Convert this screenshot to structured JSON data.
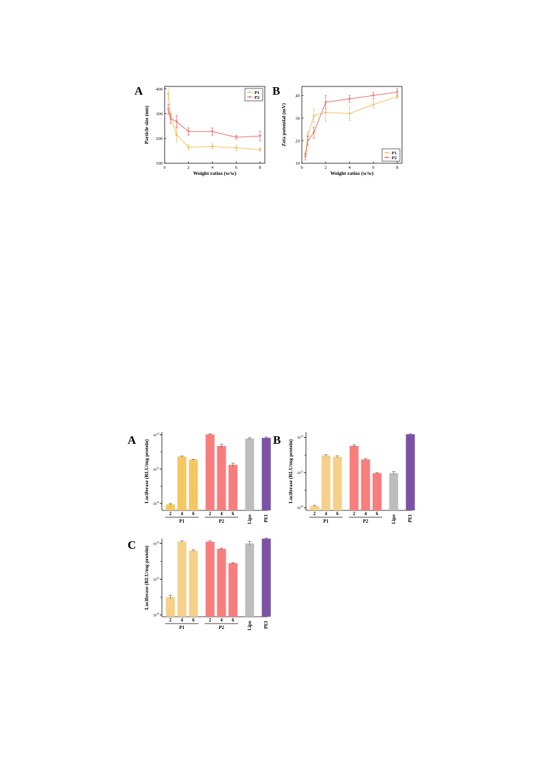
{
  "chart_data": [
    {
      "panel": "A",
      "type": "line",
      "xlabel": "Weight ratios (w/w)",
      "ylabel": "Particle size (nm)",
      "xlim": [
        0,
        8.4
      ],
      "ylim": [
        100,
        410
      ],
      "xticks": [
        0,
        2,
        4,
        6,
        8
      ],
      "yticks": [
        100,
        200,
        300,
        400
      ],
      "legend": "top-right",
      "series": [
        {
          "name": "P1",
          "color": "#f0c060",
          "marker": "circle",
          "x": [
            0.3,
            0.5,
            1,
            2,
            4,
            6,
            8
          ],
          "y": [
            380,
            290,
            215,
            165,
            168,
            162,
            155
          ],
          "err": [
            20,
            15,
            30,
            10,
            10,
            10,
            8
          ]
        },
        {
          "name": "P2",
          "color": "#f06a6a",
          "marker": "triangle-down",
          "x": [
            0.3,
            0.5,
            1,
            2,
            4,
            6,
            8
          ],
          "y": [
            318,
            280,
            268,
            228,
            228,
            205,
            210
          ],
          "err": [
            20,
            20,
            25,
            15,
            15,
            8,
            20
          ]
        }
      ]
    },
    {
      "panel": "B",
      "type": "line",
      "xlabel": "Weight ratios (w/w)",
      "ylabel": "Zeta potential (mV)",
      "xlim": [
        0,
        8.4
      ],
      "ylim": [
        10,
        44
      ],
      "xticks": [
        0,
        2,
        4,
        6,
        8
      ],
      "yticks": [
        10,
        20,
        30,
        40
      ],
      "legend": "bottom-right",
      "series": [
        {
          "name": "P1",
          "color": "#f0c060",
          "marker": "circle",
          "x": [
            0.3,
            0.5,
            1,
            2,
            4,
            6,
            8
          ],
          "y": [
            14,
            22,
            31,
            32.5,
            32,
            36,
            39.5
          ],
          "err": [
            1.5,
            2,
            3,
            4,
            3,
            1.5,
            1
          ]
        },
        {
          "name": "P2",
          "color": "#f06a6a",
          "marker": "triangle-down",
          "x": [
            0.3,
            0.5,
            1,
            2,
            4,
            6,
            8
          ],
          "y": [
            13,
            20,
            23.5,
            37,
            38.5,
            40,
            41.5
          ],
          "err": [
            1.5,
            2,
            2.5,
            3,
            1.5,
            1.5,
            1.5
          ]
        }
      ]
    },
    {
      "panel": "A",
      "type": "bar",
      "ylabel": "Luciferase (RLU/mg protein)",
      "yscale": "log",
      "ylim_exp": [
        9.6,
        14.15
      ],
      "ytick_exps": [
        10,
        12,
        14
      ],
      "categories": [
        "2",
        "4",
        "6",
        "2",
        "4",
        "6",
        "Lipo",
        "PEI"
      ],
      "groups": [
        {
          "label": "P1",
          "from": 0,
          "to": 2
        },
        {
          "label": "P2",
          "from": 3,
          "to": 5
        }
      ],
      "colors": [
        "#f5c762",
        "#f5c762",
        "#f5c762",
        "#f87d7d",
        "#f87d7d",
        "#f87d7d",
        "#bdbdbd",
        "#7b52a4"
      ],
      "values_exp": [
        9.95,
        12.73,
        12.55,
        14.02,
        13.35,
        12.25,
        13.78,
        13.82
      ],
      "err_exp": [
        0.05,
        0.03,
        0.03,
        0.03,
        0.1,
        0.1,
        0.05,
        0.05
      ]
    },
    {
      "panel": "B",
      "type": "bar",
      "ylabel": "Luciferase (RLU/mg protein)",
      "yscale": "log",
      "ylim_exp": [
        9.85,
        14.3
      ],
      "ytick_exps": [
        10,
        12,
        14
      ],
      "categories": [
        "2",
        "4",
        "6",
        "2",
        "4",
        "6",
        "Lipo",
        "PEI"
      ],
      "groups": [
        {
          "label": "P1",
          "from": 0,
          "to": 2
        },
        {
          "label": "P2",
          "from": 3,
          "to": 5
        }
      ],
      "colors": [
        "#f5d089",
        "#f5d089",
        "#f5d089",
        "#f87d7d",
        "#f87d7d",
        "#f87d7d",
        "#bdbdbd",
        "#7b52a4"
      ],
      "values_exp": [
        10.1,
        12.97,
        12.9,
        13.52,
        12.75,
        11.97,
        11.97,
        14.18
      ],
      "err_exp": [
        0.04,
        0.05,
        0.05,
        0.06,
        0.04,
        0.03,
        0.08,
        0.04
      ]
    },
    {
      "panel": "C",
      "type": "bar",
      "ylabel": "Luciferase (RLU/mg protein)",
      "yscale": "log",
      "ylim_exp": [
        9.9,
        14.28
      ],
      "ytick_exps": [
        10,
        12,
        14
      ],
      "categories": [
        "2",
        "4",
        "6",
        "2",
        "4",
        "6",
        "Lipo",
        "PEI"
      ],
      "groups": [
        {
          "label": "P1",
          "from": 0,
          "to": 2
        },
        {
          "label": "P2",
          "from": 3,
          "to": 5
        }
      ],
      "colors": [
        "#f5d089",
        "#f5d089",
        "#f5d089",
        "#f87d7d",
        "#f87d7d",
        "#f87d7d",
        "#bdbdbd",
        "#7b52a4"
      ],
      "values_exp": [
        11.0,
        14.1,
        13.6,
        14.1,
        13.7,
        12.9,
        14.0,
        14.27
      ],
      "err_exp": [
        0.1,
        0.04,
        0.04,
        0.04,
        0.04,
        0.03,
        0.12,
        0.04
      ]
    }
  ]
}
